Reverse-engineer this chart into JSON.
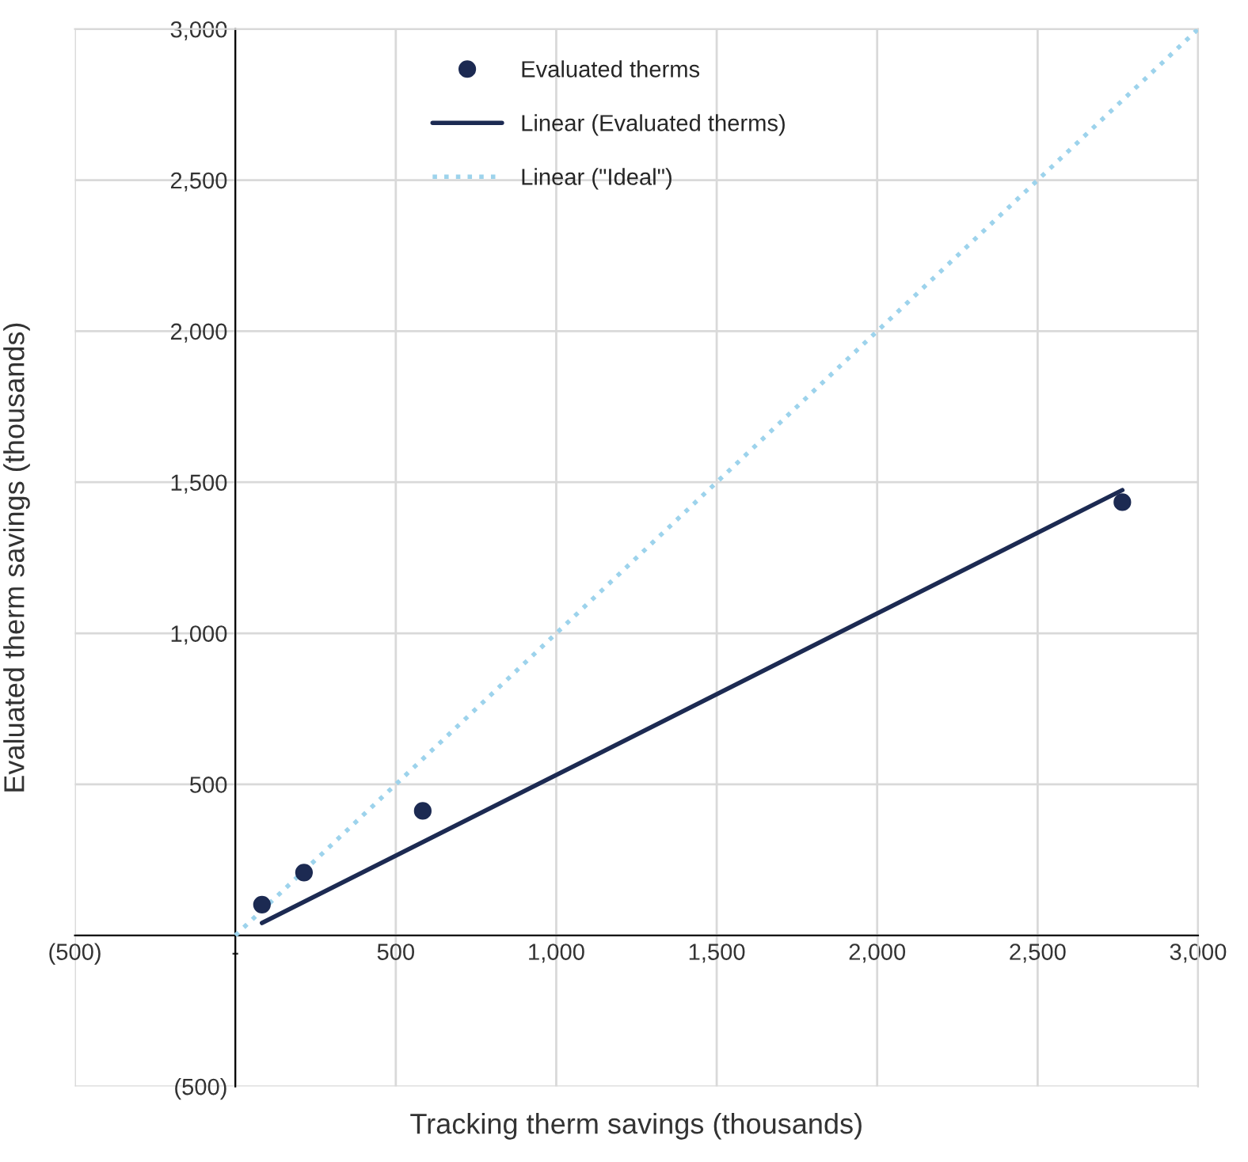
{
  "chart_data": {
    "type": "scatter",
    "xlabel": "Tracking therm savings (thousands)",
    "ylabel": "Evaluated therm savings (thousands)",
    "series": [
      {
        "name": "Evaluated therms",
        "color": "#1c2a52",
        "marker": "circle",
        "x": [
          83,
          214,
          584,
          2764
        ],
        "values": [
          102,
          208,
          412,
          1434
        ]
      },
      {
        "name": "Linear (Evaluated therms)",
        "type": "line",
        "color": "#1c2a52",
        "line_style": "solid",
        "marker": "none",
        "x": [
          83,
          2764
        ],
        "values": [
          41,
          1474
        ]
      },
      {
        "name": "Linear (\"Ideal\")",
        "type": "line",
        "color": "#9dd3ec",
        "line_style": "dotted",
        "marker": "none",
        "x": [
          0,
          3000
        ],
        "values": [
          0,
          3000
        ]
      }
    ],
    "xlim": [
      -500,
      3000
    ],
    "ylim": [
      -500,
      3000
    ],
    "xticks": [
      {
        "value": -500,
        "label": "(500)"
      },
      {
        "value": 0,
        "label": "-"
      },
      500,
      {
        "value": 1000,
        "label": "1,000"
      },
      {
        "value": 1500,
        "label": "1,500"
      },
      {
        "value": 2000,
        "label": "2,000"
      },
      {
        "value": 2500,
        "label": "2,500"
      },
      {
        "value": 3000,
        "label": "3,000"
      }
    ],
    "yticks": [
      {
        "value": -500,
        "label": "(500)"
      },
      {
        "value": 0,
        "label": null
      },
      500,
      {
        "value": 1000,
        "label": "1,000"
      },
      {
        "value": 1500,
        "label": "1,500"
      },
      {
        "value": 2000,
        "label": "2,000"
      },
      {
        "value": 2500,
        "label": "2,500"
      },
      {
        "value": 3000,
        "label": "3,000"
      }
    ],
    "grid": true,
    "legend": "top left"
  }
}
